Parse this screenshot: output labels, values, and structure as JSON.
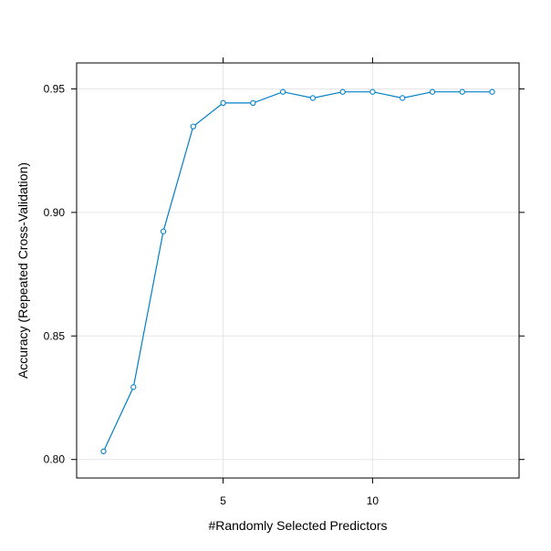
{
  "chart_data": {
    "type": "line",
    "title": "",
    "xlabel": "#Randomly Selected Predictors",
    "ylabel": "Accuracy (Repeated Cross-Validation)",
    "xlim": [
      0.1,
      14.9
    ],
    "ylim": [
      0.7925,
      0.9605
    ],
    "x_ticks": [
      5,
      10
    ],
    "x_tick_labels": [
      "5",
      "10"
    ],
    "y_ticks": [
      0.8,
      0.85,
      0.9,
      0.95
    ],
    "y_tick_labels": [
      "0.80",
      "0.85",
      "0.90",
      "0.95"
    ],
    "grid": true,
    "legend": "none",
    "series": [
      {
        "color": "#0080c8",
        "marker": "open-circle",
        "x": [
          1,
          2,
          3,
          4,
          5,
          6,
          7,
          8,
          9,
          10,
          11,
          12,
          13,
          14
        ],
        "y": [
          0.8033,
          0.8293,
          0.8923,
          0.9348,
          0.9443,
          0.9443,
          0.9488,
          0.9463,
          0.9488,
          0.9488,
          0.9463,
          0.9488,
          0.9488,
          0.9488
        ]
      }
    ]
  }
}
